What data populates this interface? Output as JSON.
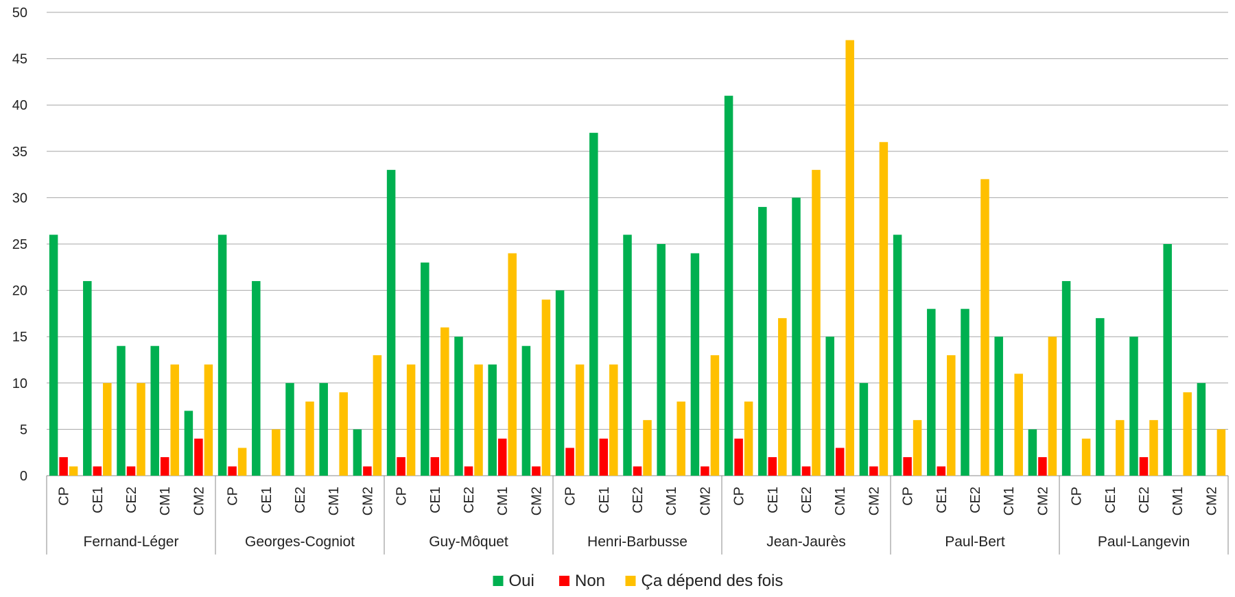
{
  "chart_data": {
    "type": "bar",
    "ylim": [
      0,
      50
    ],
    "yticks": [
      0,
      5,
      10,
      15,
      20,
      25,
      30,
      35,
      40,
      45,
      50
    ],
    "grid": true,
    "legend_position": "bottom",
    "sub_categories": [
      "CP",
      "CE1",
      "CE2",
      "CM1",
      "CM2"
    ],
    "groups": [
      "Fernand-Léger",
      "Georges-Cogniot",
      "Guy-Môquet",
      "Henri-Barbusse",
      "Jean-Jaurès",
      "Paul-Bert",
      "Paul-Langevin"
    ],
    "series": [
      {
        "name": "Oui",
        "color": "#00B050",
        "values": [
          [
            26,
            21,
            14,
            14,
            7
          ],
          [
            26,
            21,
            10,
            10,
            5
          ],
          [
            33,
            23,
            15,
            12,
            14
          ],
          [
            20,
            37,
            26,
            25,
            24
          ],
          [
            41,
            29,
            30,
            15,
            10
          ],
          [
            26,
            18,
            18,
            15,
            5
          ],
          [
            21,
            17,
            15,
            25,
            10
          ]
        ]
      },
      {
        "name": "Non",
        "color": "#FF0000",
        "values": [
          [
            2,
            1,
            1,
            2,
            4
          ],
          [
            1,
            0,
            0,
            0,
            1
          ],
          [
            2,
            2,
            1,
            4,
            1
          ],
          [
            3,
            4,
            1,
            0,
            1
          ],
          [
            4,
            2,
            1,
            3,
            1
          ],
          [
            2,
            1,
            0,
            0,
            2
          ],
          [
            0,
            0,
            2,
            0,
            0
          ]
        ]
      },
      {
        "name": "Ça dépend des fois",
        "color": "#FFC000",
        "values": [
          [
            1,
            10,
            10,
            12,
            12
          ],
          [
            3,
            5,
            8,
            9,
            13
          ],
          [
            12,
            16,
            12,
            24,
            19
          ],
          [
            12,
            12,
            6,
            8,
            13
          ],
          [
            8,
            17,
            33,
            47,
            36
          ],
          [
            6,
            13,
            32,
            11,
            15
          ],
          [
            4,
            6,
            6,
            9,
            5
          ]
        ]
      }
    ]
  }
}
